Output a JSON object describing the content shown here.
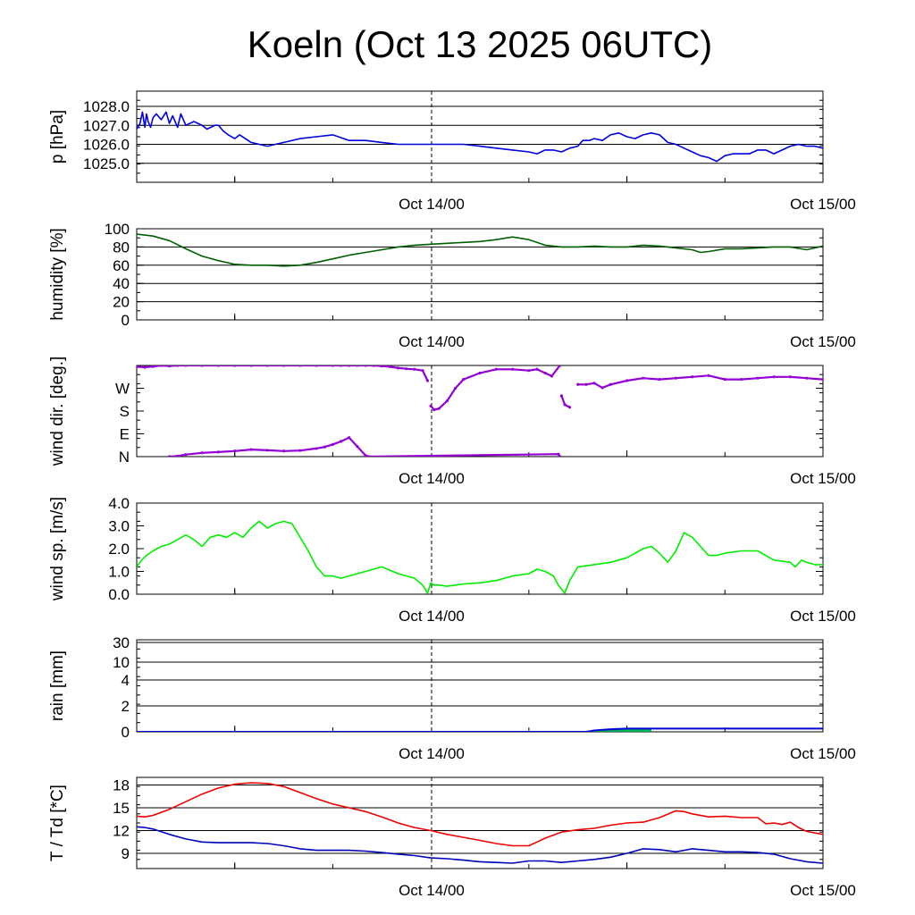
{
  "title": "Koeln (Oct 13 2025 06UTC)",
  "x_tick_labels": [
    "Oct 14/00",
    "Oct 15/00"
  ],
  "colors": {
    "pressure": "#0000dd",
    "humidity": "#006000",
    "wind_dir": "#9400d3",
    "wind_speed": "#00ee00",
    "rain_fill": "#00b050",
    "rain_line": "#0000dd",
    "temperature": "#ee0000",
    "dewpoint": "#0000bb"
  },
  "chart_data": [
    {
      "type": "line",
      "id": "pressure",
      "ylabel": "p [hPa]",
      "y_tick_labels": [
        "1028.0",
        "1027.0",
        "1026.0",
        "1025.0"
      ],
      "ylim": [
        1024.0,
        1028.8
      ],
      "y_ticks": [
        1028.0,
        1027.0,
        1026.0,
        1025.0
      ],
      "grid": true,
      "x_unit": "hours since Oct 13 06UTC",
      "xlim": [
        0,
        42
      ],
      "series": [
        {
          "x": [
            0,
            0.2,
            0.35,
            0.5,
            0.6,
            0.7,
            0.85,
            1.0,
            1.2,
            1.5,
            1.8,
            2.0,
            2.2,
            2.5,
            2.7,
            3.0,
            3.5,
            4.0,
            4.3,
            4.8,
            5.0,
            5.3,
            5.6,
            6.0,
            6.3,
            7.0,
            7.5,
            8.0,
            8.5,
            9.0,
            10.0,
            11.0,
            12.0,
            13.0,
            14.0,
            15.0,
            16.0,
            17.0,
            18.0,
            19.0,
            20.0,
            21.0,
            22.0,
            23.0,
            24.0,
            24.5,
            25.0,
            25.5,
            26.0,
            26.5,
            27.0,
            27.3,
            27.7,
            28.0,
            28.5,
            29.0,
            29.5,
            30.0,
            30.5,
            31.0,
            31.5,
            32.0,
            32.5,
            33.0,
            33.5,
            34.0,
            34.5,
            35.0,
            35.5,
            36.0,
            36.5,
            37.0,
            37.5,
            38.0,
            38.5,
            39.0,
            39.5,
            40.0,
            40.5,
            41.0,
            41.5,
            42.0
          ],
          "y": [
            1026.8,
            1027.1,
            1027.7,
            1026.9,
            1027.6,
            1027.2,
            1026.9,
            1027.4,
            1027.6,
            1027.3,
            1027.7,
            1027.1,
            1027.5,
            1026.9,
            1027.6,
            1027.0,
            1027.2,
            1027.0,
            1026.8,
            1027.0,
            1027.0,
            1026.7,
            1026.5,
            1026.3,
            1026.5,
            1026.1,
            1026.0,
            1025.9,
            1026.0,
            1026.1,
            1026.3,
            1026.4,
            1026.5,
            1026.2,
            1026.2,
            1026.1,
            1026.0,
            1026.0,
            1026.0,
            1026.0,
            1026.0,
            1025.9,
            1025.8,
            1025.7,
            1025.6,
            1025.5,
            1025.7,
            1025.7,
            1025.6,
            1025.8,
            1025.9,
            1026.2,
            1026.2,
            1026.3,
            1026.2,
            1026.5,
            1026.6,
            1026.4,
            1026.3,
            1026.5,
            1026.6,
            1026.5,
            1026.1,
            1026.0,
            1025.8,
            1025.6,
            1025.4,
            1025.3,
            1025.1,
            1025.4,
            1025.5,
            1025.5,
            1025.5,
            1025.7,
            1025.7,
            1025.5,
            1025.7,
            1025.9,
            1026.0,
            1025.9,
            1025.9,
            1025.8
          ]
        }
      ]
    },
    {
      "type": "line",
      "id": "humidity",
      "ylabel": "humidity [%]",
      "y_tick_labels": [
        "100",
        "80",
        "60",
        "40",
        "20",
        "0"
      ],
      "ylim": [
        0,
        100
      ],
      "y_ticks": [
        100,
        80,
        60,
        40,
        20,
        0
      ],
      "grid": true,
      "x_unit": "hours since Oct 13 06UTC",
      "xlim": [
        0,
        42
      ],
      "series": [
        {
          "x": [
            0,
            0.5,
            1,
            2,
            3,
            4,
            5,
            6,
            7,
            8,
            9,
            10,
            11,
            12,
            13,
            14,
            15,
            16,
            17,
            18,
            19,
            20,
            21,
            22,
            23,
            24,
            25,
            26,
            27,
            28,
            29,
            30,
            31,
            32,
            33,
            34,
            34.5,
            35,
            36,
            37,
            38,
            39,
            40,
            41,
            42
          ],
          "y": [
            94,
            93,
            92,
            87,
            78,
            70,
            65,
            61,
            60,
            60,
            59,
            60,
            63,
            67,
            71,
            74,
            77,
            80,
            82,
            83,
            84,
            85,
            86,
            88,
            91,
            88,
            82,
            80,
            80,
            81,
            80,
            80,
            82,
            81,
            79,
            77,
            74,
            75,
            78,
            78,
            79,
            80,
            80,
            77,
            81
          ]
        }
      ]
    },
    {
      "type": "scatter",
      "id": "wind_dir",
      "ylabel": "wind dir. [deg.]",
      "y_tick_labels": [
        "W",
        "S",
        "E",
        "N"
      ],
      "y_ticks": [
        270,
        180,
        90,
        0
      ],
      "ylim": [
        0,
        360
      ],
      "grid": false,
      "x_unit": "hours since Oct 13 06UTC",
      "xlim": [
        0,
        42
      ],
      "series": [
        {
          "name": "",
          "x": [
            0,
            0.5,
            1,
            1.5,
            2,
            2.5,
            3,
            4,
            5,
            6,
            7,
            8,
            9,
            10,
            11,
            12,
            12.5,
            13,
            13.5,
            14,
            14.5,
            15,
            15.5,
            16,
            16.5,
            17,
            17.5,
            17.8,
            18.0,
            18.2,
            18.5,
            19,
            19.5,
            20,
            21,
            22,
            23,
            24,
            24.5,
            25,
            25.4,
            25.9,
            26.0,
            26.2,
            26.5,
            27,
            27.5,
            28,
            28.5,
            29,
            30,
            31,
            32,
            33,
            34,
            35,
            36,
            37,
            38,
            39,
            40,
            41,
            42
          ],
          "y": [
            355,
            353,
            356,
            360,
            358,
            360,
            360,
            360,
            360,
            360,
            360,
            360,
            360,
            360,
            360,
            360,
            360,
            360,
            360,
            360,
            360,
            358,
            355,
            350,
            347,
            345,
            340,
            300,
            200,
            185,
            190,
            220,
            270,
            305,
            330,
            345,
            345,
            340,
            345,
            330,
            318,
            360,
            240,
            205,
            195,
            285,
            285,
            290,
            272,
            285,
            300,
            310,
            305,
            310,
            315,
            320,
            305,
            305,
            310,
            315,
            315,
            310,
            305
          ]
        },
        {
          "name": "",
          "x": [
            2.0,
            2.5,
            3,
            4,
            5,
            6,
            7,
            8,
            9,
            10,
            11,
            11.5,
            12,
            12.5,
            13,
            13.5,
            14,
            14.2,
            25.8,
            25.9
          ],
          "y": [
            0,
            2,
            8,
            15,
            18,
            22,
            28,
            25,
            22,
            24,
            32,
            38,
            48,
            60,
            75,
            40,
            5,
            0,
            10,
            0
          ]
        }
      ]
    },
    {
      "type": "line",
      "id": "wind_speed",
      "ylabel": "wind sp. [m/s]",
      "y_tick_labels": [
        "4.0",
        "3.0",
        "2.0",
        "1.0",
        "0.0"
      ],
      "ylim": [
        0,
        4
      ],
      "y_ticks": [
        4,
        3,
        2,
        1,
        0
      ],
      "grid": false,
      "x_unit": "hours since Oct 13 06UTC",
      "xlim": [
        0,
        42
      ],
      "series": [
        {
          "x": [
            0,
            0.3,
            0.6,
            1,
            1.5,
            2,
            2.5,
            3,
            3.5,
            4,
            4.5,
            5,
            5.5,
            6,
            6.5,
            7,
            7.5,
            8,
            8.5,
            9,
            9.5,
            10,
            10.5,
            11,
            11.5,
            12,
            12.5,
            13,
            14,
            15,
            16,
            17,
            17.5,
            17.8,
            18,
            18.2,
            18.5,
            19,
            20,
            21,
            22,
            23,
            24,
            24.5,
            25,
            25.5,
            25.8,
            26.2,
            26.5,
            27,
            28,
            29,
            30,
            31,
            31.5,
            32,
            32.5,
            33,
            33.5,
            34,
            34.5,
            35,
            35.5,
            36,
            37,
            38,
            39,
            40,
            40.3,
            40.7,
            41,
            41.5,
            42
          ],
          "y": [
            1.2,
            1.5,
            1.7,
            1.9,
            2.1,
            2.2,
            2.4,
            2.6,
            2.4,
            2.1,
            2.5,
            2.6,
            2.5,
            2.7,
            2.5,
            2.9,
            3.2,
            2.9,
            3.1,
            3.2,
            3.1,
            2.5,
            1.9,
            1.2,
            0.8,
            0.8,
            0.7,
            0.8,
            1.0,
            1.2,
            0.9,
            0.7,
            0.4,
            0.05,
            0.5,
            0.4,
            0.4,
            0.35,
            0.45,
            0.5,
            0.6,
            0.8,
            0.9,
            1.1,
            1.0,
            0.8,
            0.4,
            0.05,
            0.6,
            1.2,
            1.3,
            1.4,
            1.6,
            2.0,
            2.1,
            1.8,
            1.4,
            1.9,
            2.7,
            2.5,
            2.1,
            1.7,
            1.7,
            1.8,
            1.9,
            1.9,
            1.5,
            1.4,
            1.2,
            1.5,
            1.4,
            1.3,
            1.3
          ]
        }
      ]
    },
    {
      "type": "area",
      "id": "rain",
      "ylabel": "rain [mm]",
      "y_tick_labels": [
        "30",
        "10",
        "4",
        "2",
        "0"
      ],
      "y_ticks": [
        30,
        10,
        4,
        2,
        0
      ],
      "ylim": [
        0,
        30
      ],
      "y_scale": "nonlinear",
      "grid": true,
      "x_unit": "hours since Oct 13 06UTC",
      "xlim": [
        0,
        42
      ],
      "series": [
        {
          "name": "",
          "x": [
            0,
            27.5,
            28.0,
            29,
            30,
            31,
            31.5,
            42
          ],
          "y": [
            0,
            0,
            0.1,
            0.2,
            0.25,
            0.25,
            0.25,
            0.25
          ]
        }
      ]
    },
    {
      "type": "line",
      "id": "temperature",
      "ylabel": "T / Td [*C]",
      "y_tick_labels": [
        "18",
        "15",
        "12",
        "9"
      ],
      "ylim": [
        7,
        19
      ],
      "y_ticks": [
        18,
        15,
        12,
        9
      ],
      "grid": true,
      "x_unit": "hours since Oct 13 06UTC",
      "xlim": [
        0,
        42
      ],
      "series": [
        {
          "name": "",
          "x": [
            0,
            0.5,
            1,
            2,
            3,
            4,
            5,
            6,
            7,
            8,
            9,
            10,
            11,
            12,
            13,
            14,
            15,
            16,
            17,
            18,
            19,
            20,
            21,
            22,
            23,
            24,
            24.5,
            25,
            26,
            27,
            28,
            29,
            30,
            31,
            32,
            33,
            33.5,
            34,
            35,
            36,
            37,
            38,
            38.5,
            39,
            39.5,
            40,
            40.5,
            41,
            42
          ],
          "y": [
            13.9,
            13.8,
            14.0,
            14.8,
            15.8,
            16.8,
            17.6,
            18.1,
            18.3,
            18.2,
            17.8,
            17.0,
            16.2,
            15.5,
            15.0,
            14.5,
            13.8,
            13.0,
            12.4,
            12.0,
            11.5,
            11.1,
            10.7,
            10.3,
            10.0,
            10.0,
            10.5,
            11.0,
            11.8,
            12.1,
            12.3,
            12.7,
            13.0,
            13.1,
            13.7,
            14.6,
            14.5,
            14.2,
            13.8,
            13.9,
            13.7,
            13.7,
            12.9,
            13.0,
            12.8,
            13.1,
            12.4,
            11.9,
            11.5
          ]
        },
        {
          "name": "",
          "x": [
            0,
            0.5,
            1,
            2,
            3,
            4,
            5,
            6,
            7,
            8,
            9,
            10,
            11,
            12,
            13,
            14,
            15,
            16,
            17,
            18,
            19,
            20,
            21,
            22,
            23,
            24,
            25,
            26,
            27,
            28,
            29,
            30,
            31,
            32,
            33,
            34,
            35,
            36,
            37,
            38,
            39,
            40,
            41,
            42
          ],
          "y": [
            12.5,
            12.4,
            12.2,
            11.5,
            10.9,
            10.5,
            10.4,
            10.4,
            10.4,
            10.3,
            10.0,
            9.6,
            9.4,
            9.4,
            9.4,
            9.3,
            9.1,
            8.9,
            8.7,
            8.4,
            8.3,
            8.1,
            7.9,
            7.8,
            7.7,
            8.0,
            8.0,
            7.8,
            8.0,
            8.2,
            8.5,
            9.0,
            9.6,
            9.5,
            9.2,
            9.6,
            9.4,
            9.2,
            9.2,
            9.1,
            8.9,
            8.3,
            7.9,
            7.7
          ]
        }
      ]
    }
  ]
}
